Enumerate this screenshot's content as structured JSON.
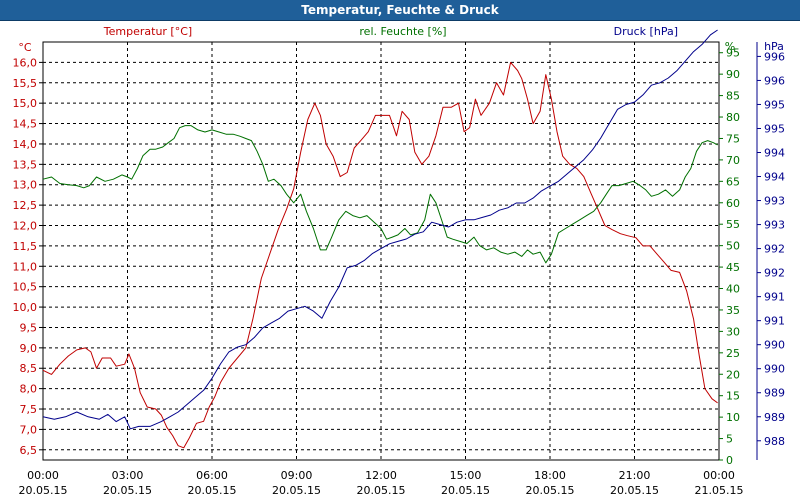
{
  "chart_data": {
    "type": "line",
    "title": "Temperatur, Feuchte & Druck",
    "grid": true,
    "x_ticks": [
      {
        "time": "00:00",
        "date": "20.05.15"
      },
      {
        "time": "03:00",
        "date": "20.05.15"
      },
      {
        "time": "06:00",
        "date": "20.05.15"
      },
      {
        "time": "09:00",
        "date": "20.05.15"
      },
      {
        "time": "12:00",
        "date": "20.05.15"
      },
      {
        "time": "15:00",
        "date": "20.05.15"
      },
      {
        "time": "18:00",
        "date": "20.05.15"
      },
      {
        "time": "21:00",
        "date": "20.05.15"
      },
      {
        "time": "00:00",
        "date": "21.05.15"
      }
    ],
    "xlim_hours": [
      0,
      24
    ],
    "axes": {
      "temperature": {
        "unit": "°C",
        "ylim": [
          6.25,
          16.5
        ],
        "ticks": [
          "6,5",
          "7,0",
          "7,5",
          "8,0",
          "8,5",
          "9,0",
          "9,5",
          "10,0",
          "10,5",
          "11,0",
          "11,5",
          "12,0",
          "12,5",
          "13,0",
          "13,5",
          "14,0",
          "14,5",
          "15,0",
          "15,5",
          "16,0"
        ],
        "color": "#c00000"
      },
      "humidity": {
        "unit": "%",
        "ylim": [
          0,
          97.5
        ],
        "ticks": [
          "0",
          "5",
          "10",
          "15",
          "20",
          "25",
          "30",
          "35",
          "40",
          "45",
          "50",
          "55",
          "60",
          "65",
          "70",
          "75",
          "80",
          "85",
          "90",
          "95"
        ],
        "color": "#007000"
      },
      "pressure": {
        "unit": "hPa",
        "ticks": [
          "988",
          "989",
          "989",
          "990",
          "990",
          "991",
          "991",
          "992",
          "992",
          "993",
          "993",
          "994",
          "994",
          "995",
          "995",
          "996",
          "996"
        ],
        "tick_values": [
          988.0,
          988.5,
          989.0,
          989.5,
          990.0,
          990.5,
          991.0,
          991.5,
          992.0,
          992.5,
          993.0,
          993.5,
          994.0,
          994.5,
          995.0,
          995.5,
          996.0
        ],
        "ylim": [
          987.6,
          996.3
        ],
        "color": "#00008b"
      }
    },
    "series": [
      {
        "name": "Temperatur [°C]",
        "axis": "temperature",
        "color": "#c00000",
        "points": [
          [
            0,
            8.45
          ],
          [
            0.3,
            8.35
          ],
          [
            0.6,
            8.6
          ],
          [
            0.9,
            8.8
          ],
          [
            1.2,
            8.95
          ],
          [
            1.5,
            9.0
          ],
          [
            1.7,
            8.9
          ],
          [
            1.9,
            8.5
          ],
          [
            2.1,
            8.75
          ],
          [
            2.4,
            8.75
          ],
          [
            2.6,
            8.55
          ],
          [
            2.9,
            8.6
          ],
          [
            3.05,
            8.85
          ],
          [
            3.25,
            8.5
          ],
          [
            3.45,
            7.9
          ],
          [
            3.7,
            7.55
          ],
          [
            4.0,
            7.5
          ],
          [
            4.2,
            7.35
          ],
          [
            4.4,
            7.05
          ],
          [
            4.6,
            6.85
          ],
          [
            4.8,
            6.6
          ],
          [
            5.0,
            6.55
          ],
          [
            5.2,
            6.8
          ],
          [
            5.45,
            7.15
          ],
          [
            5.7,
            7.2
          ],
          [
            5.9,
            7.55
          ],
          [
            6.1,
            7.8
          ],
          [
            6.3,
            8.15
          ],
          [
            6.6,
            8.5
          ],
          [
            6.9,
            8.75
          ],
          [
            7.2,
            9.0
          ],
          [
            7.45,
            9.7
          ],
          [
            7.75,
            10.7
          ],
          [
            8.05,
            11.3
          ],
          [
            8.35,
            11.9
          ],
          [
            8.65,
            12.4
          ],
          [
            8.9,
            12.9
          ],
          [
            9.15,
            13.8
          ],
          [
            9.4,
            14.6
          ],
          [
            9.65,
            15.0
          ],
          [
            9.85,
            14.7
          ],
          [
            10.05,
            14.0
          ],
          [
            10.3,
            13.7
          ],
          [
            10.55,
            13.2
          ],
          [
            10.8,
            13.3
          ],
          [
            11.05,
            13.9
          ],
          [
            11.3,
            14.1
          ],
          [
            11.55,
            14.3
          ],
          [
            11.8,
            14.7
          ],
          [
            12.05,
            14.7
          ],
          [
            12.3,
            14.7
          ],
          [
            12.55,
            14.2
          ],
          [
            12.75,
            14.8
          ],
          [
            13.0,
            14.6
          ],
          [
            13.2,
            13.8
          ],
          [
            13.45,
            13.5
          ],
          [
            13.7,
            13.7
          ],
          [
            13.95,
            14.2
          ],
          [
            14.2,
            14.9
          ],
          [
            14.5,
            14.9
          ],
          [
            14.75,
            15.0
          ],
          [
            14.95,
            14.3
          ],
          [
            15.15,
            14.4
          ],
          [
            15.35,
            15.1
          ],
          [
            15.55,
            14.7
          ],
          [
            15.85,
            15.0
          ],
          [
            16.1,
            15.5
          ],
          [
            16.35,
            15.2
          ],
          [
            16.6,
            16.0
          ],
          [
            16.85,
            15.8
          ],
          [
            17.0,
            15.6
          ],
          [
            17.2,
            15.1
          ],
          [
            17.4,
            14.5
          ],
          [
            17.65,
            14.8
          ],
          [
            17.85,
            15.7
          ],
          [
            18.05,
            15.1
          ],
          [
            18.25,
            14.3
          ],
          [
            18.45,
            13.7
          ],
          [
            18.7,
            13.5
          ],
          [
            18.95,
            13.4
          ],
          [
            19.2,
            13.2
          ],
          [
            19.45,
            12.8
          ],
          [
            19.7,
            12.4
          ],
          [
            19.95,
            12.0
          ],
          [
            20.2,
            11.9
          ],
          [
            20.5,
            11.8
          ],
          [
            20.75,
            11.75
          ],
          [
            21.05,
            11.7
          ],
          [
            21.3,
            11.5
          ],
          [
            21.55,
            11.5
          ],
          [
            21.8,
            11.3
          ],
          [
            22.05,
            11.1
          ],
          [
            22.3,
            10.9
          ],
          [
            22.6,
            10.85
          ],
          [
            22.85,
            10.4
          ],
          [
            23.1,
            9.7
          ],
          [
            23.3,
            8.8
          ],
          [
            23.5,
            8.0
          ],
          [
            23.75,
            7.75
          ],
          [
            23.95,
            7.65
          ]
        ]
      },
      {
        "name": "rel. Feuchte [%]",
        "axis": "humidity",
        "color": "#007000",
        "points": [
          [
            0,
            65.5
          ],
          [
            0.3,
            66
          ],
          [
            0.6,
            64.5
          ],
          [
            0.9,
            64.2
          ],
          [
            1.2,
            64
          ],
          [
            1.45,
            63.5
          ],
          [
            1.65,
            64
          ],
          [
            1.9,
            66
          ],
          [
            2.2,
            65
          ],
          [
            2.5,
            65.5
          ],
          [
            2.8,
            66.5
          ],
          [
            3.0,
            66
          ],
          [
            3.15,
            65.5
          ],
          [
            3.35,
            68
          ],
          [
            3.55,
            71
          ],
          [
            3.8,
            72.5
          ],
          [
            4.0,
            72.5
          ],
          [
            4.25,
            73
          ],
          [
            4.45,
            74
          ],
          [
            4.65,
            75
          ],
          [
            4.85,
            77.5
          ],
          [
            5.05,
            78
          ],
          [
            5.25,
            78
          ],
          [
            5.5,
            77
          ],
          [
            5.75,
            76.5
          ],
          [
            6.0,
            77
          ],
          [
            6.25,
            76.5
          ],
          [
            6.5,
            76
          ],
          [
            6.75,
            76
          ],
          [
            7.0,
            75.5
          ],
          [
            7.2,
            75
          ],
          [
            7.4,
            74.5
          ],
          [
            7.6,
            72
          ],
          [
            7.8,
            69
          ],
          [
            8.0,
            65
          ],
          [
            8.2,
            65.5
          ],
          [
            8.45,
            64
          ],
          [
            8.65,
            62
          ],
          [
            8.9,
            60
          ],
          [
            9.15,
            62
          ],
          [
            9.35,
            58
          ],
          [
            9.6,
            54
          ],
          [
            9.85,
            49
          ],
          [
            10.05,
            49
          ],
          [
            10.25,
            52
          ],
          [
            10.5,
            56
          ],
          [
            10.75,
            58
          ],
          [
            11.0,
            57
          ],
          [
            11.25,
            56.5
          ],
          [
            11.5,
            57
          ],
          [
            11.75,
            55.5
          ],
          [
            12.0,
            54
          ],
          [
            12.2,
            51.5
          ],
          [
            12.4,
            52
          ],
          [
            12.6,
            52.5
          ],
          [
            12.85,
            54
          ],
          [
            13.05,
            52.5
          ],
          [
            13.3,
            53
          ],
          [
            13.55,
            56
          ],
          [
            13.75,
            62
          ],
          [
            13.95,
            60
          ],
          [
            14.15,
            56
          ],
          [
            14.35,
            52
          ],
          [
            14.55,
            51.5
          ],
          [
            14.8,
            51
          ],
          [
            15.05,
            50.5
          ],
          [
            15.3,
            52
          ],
          [
            15.5,
            50
          ],
          [
            15.75,
            49
          ],
          [
            16.0,
            49.5
          ],
          [
            16.25,
            48.5
          ],
          [
            16.5,
            48
          ],
          [
            16.75,
            48.5
          ],
          [
            17.0,
            47.5
          ],
          [
            17.2,
            49
          ],
          [
            17.4,
            48
          ],
          [
            17.65,
            48.5
          ],
          [
            17.85,
            46
          ],
          [
            18.05,
            48
          ],
          [
            18.3,
            53
          ],
          [
            18.55,
            54
          ],
          [
            18.8,
            55
          ],
          [
            19.05,
            56
          ],
          [
            19.3,
            57
          ],
          [
            19.55,
            58
          ],
          [
            19.8,
            60
          ],
          [
            20.0,
            62
          ],
          [
            20.2,
            64
          ],
          [
            20.45,
            64
          ],
          [
            20.7,
            64.5
          ],
          [
            20.95,
            65
          ],
          [
            21.2,
            64
          ],
          [
            21.4,
            63
          ],
          [
            21.6,
            61.5
          ],
          [
            21.85,
            62
          ],
          [
            22.1,
            63
          ],
          [
            22.35,
            61.5
          ],
          [
            22.6,
            63
          ],
          [
            22.8,
            66
          ],
          [
            23.0,
            68
          ],
          [
            23.2,
            72
          ],
          [
            23.4,
            74
          ],
          [
            23.6,
            74.5
          ],
          [
            23.8,
            74
          ],
          [
            23.95,
            73.5
          ]
        ]
      },
      {
        "name": "Druck [hPa]",
        "axis": "pressure",
        "color": "#00008b",
        "points": [
          [
            0,
            988.5
          ],
          [
            0.4,
            988.45
          ],
          [
            0.8,
            988.5
          ],
          [
            1.2,
            988.6
          ],
          [
            1.6,
            988.5
          ],
          [
            2.0,
            988.45
          ],
          [
            2.3,
            988.55
          ],
          [
            2.6,
            988.4
          ],
          [
            2.9,
            988.5
          ],
          [
            3.1,
            988.25
          ],
          [
            3.4,
            988.3
          ],
          [
            3.8,
            988.3
          ],
          [
            4.2,
            988.4
          ],
          [
            4.5,
            988.5
          ],
          [
            4.8,
            988.6
          ],
          [
            5.1,
            988.75
          ],
          [
            5.4,
            988.9
          ],
          [
            5.7,
            989.05
          ],
          [
            6.0,
            989.3
          ],
          [
            6.3,
            989.6
          ],
          [
            6.6,
            989.85
          ],
          [
            6.9,
            989.95
          ],
          [
            7.2,
            990.0
          ],
          [
            7.5,
            990.15
          ],
          [
            7.8,
            990.35
          ],
          [
            8.1,
            990.45
          ],
          [
            8.4,
            990.55
          ],
          [
            8.7,
            990.7
          ],
          [
            9.0,
            990.75
          ],
          [
            9.3,
            990.8
          ],
          [
            9.6,
            990.7
          ],
          [
            9.9,
            990.55
          ],
          [
            10.2,
            990.9
          ],
          [
            10.5,
            991.2
          ],
          [
            10.8,
            991.6
          ],
          [
            11.1,
            991.65
          ],
          [
            11.4,
            991.75
          ],
          [
            11.7,
            991.9
          ],
          [
            12.0,
            992.0
          ],
          [
            12.3,
            992.1
          ],
          [
            12.6,
            992.15
          ],
          [
            12.9,
            992.2
          ],
          [
            13.2,
            992.3
          ],
          [
            13.5,
            992.35
          ],
          [
            13.8,
            992.55
          ],
          [
            14.1,
            992.5
          ],
          [
            14.4,
            992.45
          ],
          [
            14.7,
            992.55
          ],
          [
            15.0,
            992.6
          ],
          [
            15.3,
            992.6
          ],
          [
            15.6,
            992.65
          ],
          [
            15.9,
            992.7
          ],
          [
            16.2,
            992.8
          ],
          [
            16.5,
            992.85
          ],
          [
            16.8,
            992.95
          ],
          [
            17.1,
            992.95
          ],
          [
            17.4,
            993.05
          ],
          [
            17.7,
            993.2
          ],
          [
            18.0,
            993.3
          ],
          [
            18.3,
            993.4
          ],
          [
            18.6,
            993.55
          ],
          [
            18.9,
            993.7
          ],
          [
            19.2,
            993.85
          ],
          [
            19.5,
            994.05
          ],
          [
            19.8,
            994.3
          ],
          [
            20.1,
            994.6
          ],
          [
            20.4,
            994.9
          ],
          [
            20.7,
            995.0
          ],
          [
            21.0,
            995.05
          ],
          [
            21.3,
            995.2
          ],
          [
            21.6,
            995.4
          ],
          [
            21.9,
            995.45
          ],
          [
            22.2,
            995.55
          ],
          [
            22.5,
            995.7
          ],
          [
            22.8,
            995.9
          ],
          [
            23.1,
            996.1
          ],
          [
            23.4,
            996.25
          ],
          [
            23.7,
            996.45
          ],
          [
            23.95,
            996.55
          ]
        ]
      }
    ]
  }
}
